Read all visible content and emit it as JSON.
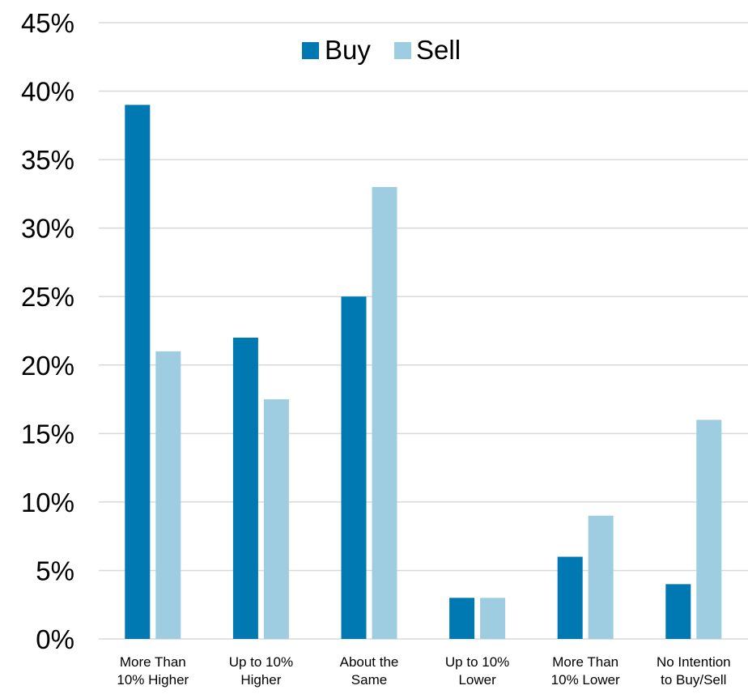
{
  "chart_data": {
    "type": "bar",
    "title": "",
    "xlabel": "",
    "ylabel": "",
    "categories": [
      [
        "More Than",
        "10% Higher"
      ],
      [
        "Up to 10%",
        "Higher"
      ],
      [
        "About the",
        "Same"
      ],
      [
        "Up to 10%",
        "Lower"
      ],
      [
        "More Than",
        "10% Lower"
      ],
      [
        "No Intention",
        "to Buy/Sell"
      ]
    ],
    "series": [
      {
        "name": "Buy",
        "color": "#0079B3",
        "values": [
          39,
          22,
          25,
          3,
          6,
          4
        ]
      },
      {
        "name": "Sell",
        "color": "#9ECDE2",
        "values": [
          21,
          17.5,
          33,
          3,
          9,
          16
        ]
      }
    ],
    "ylim": [
      0,
      45
    ],
    "yticks": [
      "0%",
      "5%",
      "10%",
      "15%",
      "20%",
      "25%",
      "30%",
      "35%",
      "40%",
      "45%"
    ],
    "ytick_values": [
      0,
      5,
      10,
      15,
      20,
      25,
      30,
      35,
      40,
      45
    ],
    "grid": true,
    "gridline_color": "#D9D9D9",
    "legend_position": "top-center"
  }
}
